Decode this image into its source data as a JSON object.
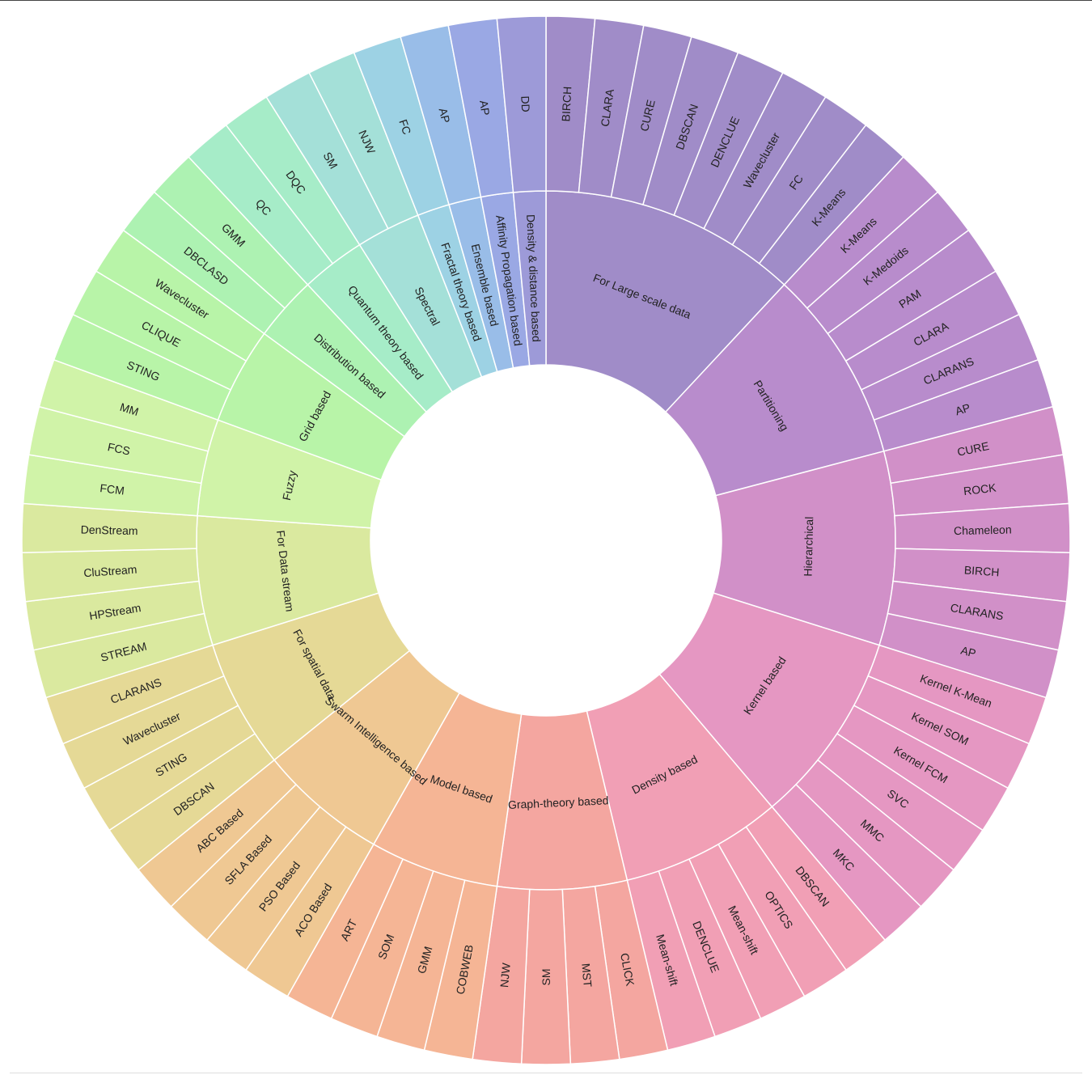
{
  "chart_data": {
    "type": "sunburst",
    "title": "",
    "note": "Two-ring sunburst; each inner category spans its leaf methods; leaves are equal-weight, listed clockwise from 12 o'clock.",
    "groups": [
      {
        "name": "For Large scale data",
        "color": "#a08cc8",
        "children": [
          "BIRCH",
          "CLARA",
          "CURE",
          "DBSCAN",
          "DENCLUE",
          "Wavecluster",
          "FC",
          "K-Means"
        ]
      },
      {
        "name": "Partitioning",
        "color": "#b88ccc",
        "children": [
          "K-Means",
          "K-Medoids",
          "PAM",
          "CLARA",
          "CLARANS",
          "AP"
        ]
      },
      {
        "name": "Hierarchical",
        "color": "#d190c8",
        "children": [
          "CURE",
          "ROCK",
          "Chameleon",
          "BIRCH",
          "CLARANS",
          "AP"
        ]
      },
      {
        "name": "Kernel based",
        "color": "#e597c2",
        "children": [
          "Kernel K-Mean",
          "Kernel SOM",
          "Kernel FCM",
          "SVC",
          "MMC",
          "MKC"
        ]
      },
      {
        "name": "Density based",
        "color": "#f19fb5",
        "children": [
          "DBSCAN",
          "OPTICS",
          "Mean-shift",
          "DENCLUE",
          "Mean-shift"
        ]
      },
      {
        "name": "Graph-theory based",
        "color": "#f4a6a0",
        "children": [
          "CLICK",
          "MST",
          "SM",
          "NJW"
        ]
      },
      {
        "name": "Model based",
        "color": "#f5b595",
        "children": [
          "COBWEB",
          "GMM",
          "SOM",
          "ART"
        ]
      },
      {
        "name": "Swarm Intelligence based",
        "color": "#efc893",
        "children": [
          "ACO Based",
          "PSO Based",
          "SFLA Based",
          "ABC Based"
        ]
      },
      {
        "name": "For spatial data",
        "color": "#e5d996",
        "children": [
          "DBSCAN",
          "STING",
          "Wavecluster",
          "CLARANS"
        ]
      },
      {
        "name": "For Data stream",
        "color": "#dae99f",
        "children": [
          "STREAM",
          "HPStream",
          "CluStream",
          "DenStream"
        ]
      },
      {
        "name": "Fuzzy",
        "color": "#d0f3a8",
        "children": [
          "FCM",
          "FCS",
          "MM"
        ]
      },
      {
        "name": "Grid based",
        "color": "#b8f4a8",
        "children": [
          "STING",
          "CLIQUE",
          "Wavecluster"
        ]
      },
      {
        "name": "Distribution based",
        "color": "#adf2b2",
        "children": [
          "DBCLASD",
          "GMM"
        ]
      },
      {
        "name": "Quantum theory based",
        "color": "#a6ecc8",
        "children": [
          "QC",
          "DQC"
        ]
      },
      {
        "name": "Spectral",
        "color": "#a4e0d8",
        "children": [
          "SM",
          "NJW"
        ]
      },
      {
        "name": "Fractal theory based",
        "color": "#9dd2e4",
        "children": [
          "FC"
        ]
      },
      {
        "name": "Ensemble based",
        "color": "#99bde8",
        "children": [
          "AP"
        ]
      },
      {
        "name": "Affinity Propagation based",
        "color": "#9aa8e4",
        "children": [
          "AP"
        ]
      },
      {
        "name": "Density & distance based",
        "color": "#9d9ad8",
        "children": [
          "DD"
        ]
      }
    ]
  }
}
